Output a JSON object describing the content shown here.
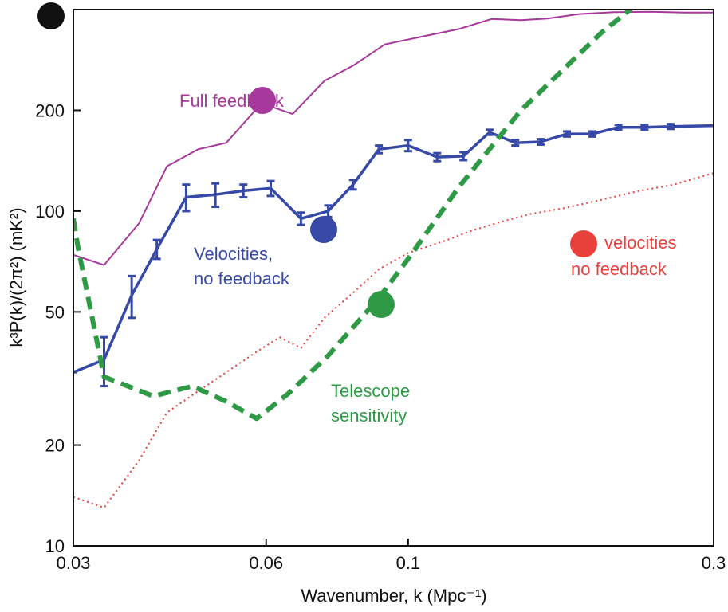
{
  "chart_data": {
    "type": "line",
    "xlabel": "Wavenumber, k (Mpc⁻¹)",
    "ylabel": "k³P(k)/(2π²) (mK²)",
    "xscale": "log",
    "yscale": "log",
    "xlim": [
      0.03,
      0.3
    ],
    "ylim": [
      10,
      400
    ],
    "xticks": [
      0.03,
      0.06,
      0.1,
      0.3
    ],
    "xtick_labels": [
      "0.03",
      "0.06",
      "0.1",
      "0.3"
    ],
    "yticks": [
      10,
      20,
      50,
      100,
      200
    ],
    "ytick_labels": [
      "10",
      "20",
      "50",
      "100",
      "200"
    ],
    "grid": false,
    "series": [
      {
        "name": "Full feedback",
        "color": "#a6399b",
        "style": "solid-thin",
        "x": [
          0.03,
          0.0335,
          0.038,
          0.042,
          0.047,
          0.052,
          0.059,
          0.066,
          0.074,
          0.082,
          0.092,
          0.105,
          0.12,
          0.135,
          0.15,
          0.165,
          0.185,
          0.21,
          0.24,
          0.27,
          0.3
        ],
        "y": [
          74,
          69,
          92,
          136,
          153,
          160,
          210,
          195,
          245,
          272,
          315,
          332,
          350,
          375,
          372,
          376,
          388,
          393,
          394,
          392,
          392
        ]
      },
      {
        "name": "Velocities, no feedback",
        "color": "#3749a6",
        "style": "solid-errorbars",
        "x": [
          0.03,
          0.0335,
          0.037,
          0.0405,
          0.045,
          0.05,
          0.0553,
          0.061,
          0.068,
          0.075,
          0.082,
          0.09,
          0.1,
          0.111,
          0.122,
          0.134,
          0.147,
          0.161,
          0.177,
          0.194,
          0.213,
          0.234,
          0.257,
          0.3
        ],
        "y": [
          33,
          36,
          56,
          77,
          110,
          112,
          115,
          117,
          95,
          100,
          120,
          153,
          157,
          145,
          146,
          172,
          160,
          161,
          170,
          170,
          178,
          178,
          179,
          180
        ],
        "err": [
          0,
          6,
          8,
          5,
          10,
          9,
          5,
          6,
          4,
          4,
          4,
          4,
          6,
          4,
          4,
          3,
          3,
          3,
          3,
          3,
          3,
          3,
          3,
          0
        ]
      },
      {
        "name": "velocities no feedback",
        "color": "#e8413c",
        "style": "dotted",
        "x": [
          0.03,
          0.0335,
          0.038,
          0.042,
          0.047,
          0.052,
          0.058,
          0.063,
          0.068,
          0.074,
          0.082,
          0.09,
          0.1,
          0.113,
          0.127,
          0.14,
          0.155,
          0.175,
          0.2,
          0.23,
          0.26,
          0.3
        ],
        "y": [
          14,
          13,
          18,
          25,
          29,
          33,
          38,
          42,
          39,
          48,
          57,
          67,
          75,
          81,
          88,
          93,
          98,
          102,
          108,
          115,
          120,
          130
        ]
      },
      {
        "name": "Telescope sensitivity",
        "color": "#2f9a45",
        "style": "dashed",
        "x": [
          0.03,
          0.0305,
          0.0335,
          0.04,
          0.046,
          0.052,
          0.058,
          0.065,
          0.075,
          0.09,
          0.1,
          0.12,
          0.15,
          0.2,
          0.25
        ],
        "y": [
          95,
          78,
          32,
          28,
          30,
          27,
          24,
          28.5,
          37,
          55,
          72,
          118,
          200,
          340,
          480
        ]
      }
    ],
    "annotations": [
      {
        "text": "Full feedback",
        "color": "#a6399b"
      },
      {
        "text": "Velocities,",
        "color": "#3749a6"
      },
      {
        "text": "no feedback",
        "color": "#3749a6"
      },
      {
        "text": "velocities",
        "color": "#e8413c"
      },
      {
        "text": "no feedback",
        "color": "#e8413c"
      },
      {
        "text": "Telescope",
        "color": "#2f9a45"
      },
      {
        "text": "sensitivity",
        "color": "#2f9a45"
      }
    ],
    "markers": [
      {
        "name": "black",
        "color": "#111111"
      },
      {
        "name": "purple",
        "color": "#a6399b"
      },
      {
        "name": "blue",
        "color": "#3749a6"
      },
      {
        "name": "red",
        "color": "#e8413c"
      },
      {
        "name": "green",
        "color": "#2f9a45"
      }
    ]
  }
}
